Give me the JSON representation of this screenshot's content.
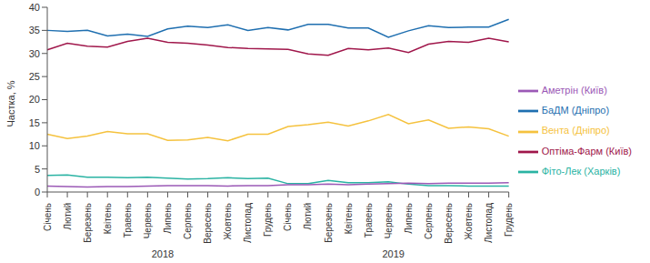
{
  "chart_data": {
    "type": "line",
    "y_label": "Частка, %",
    "categories": [
      "Січень",
      "Лютий",
      "Березень",
      "Квітень",
      "Травень",
      "Червень",
      "Липень",
      "Серпень",
      "Вересень",
      "Жовтень",
      "Листопад",
      "Грудень",
      "Січень",
      "Лютий",
      "Березень",
      "Квітень",
      "Травень",
      "Червень",
      "Липень",
      "Серпень",
      "Вересень",
      "Жовтень",
      "Листопад",
      "Грудень"
    ],
    "year_labels": [
      "2018",
      "2019"
    ],
    "series": [
      {
        "name": "БаДМ (Дніпро)",
        "color": "#1f6fb0",
        "values": [
          35,
          34.8,
          35,
          33.8,
          34.2,
          33.7,
          35.3,
          35.9,
          35.6,
          36.2,
          35,
          35.6,
          35.1,
          36.3,
          36.3,
          35.5,
          35.5,
          33.5,
          34.9,
          36,
          35.6,
          35.7,
          35.7,
          37.4
        ]
      },
      {
        "name": "Оптіма-Фарм (Київ)",
        "color": "#a0174b",
        "values": [
          30.8,
          32.2,
          31.6,
          31.4,
          32.6,
          33.3,
          32.4,
          32.2,
          31.8,
          31.3,
          31.1,
          31.0,
          30.9,
          29.9,
          29.6,
          31.1,
          30.8,
          31.2,
          30.2,
          32,
          32.6,
          32.4,
          33.3,
          32.5
        ]
      },
      {
        "name": "Вента (Дніпро)",
        "color": "#f5c23e",
        "values": [
          12.5,
          11.6,
          12.1,
          13.1,
          12.6,
          12.6,
          11.2,
          11.3,
          11.8,
          11.1,
          12.5,
          12.5,
          14.2,
          14.6,
          15.1,
          14.3,
          15.4,
          16.8,
          14.8,
          15.6,
          13.8,
          14.1,
          13.7,
          12.1
        ]
      },
      {
        "name": "Фіто-Лек (Харків)",
        "color": "#2ab3a3",
        "values": [
          3.6,
          3.7,
          3.2,
          3.2,
          3.1,
          3.2,
          3.0,
          2.8,
          2.9,
          3.1,
          2.9,
          3.0,
          1.8,
          1.8,
          2.5,
          2.0,
          2.0,
          2.2,
          1.7,
          1.4,
          1.4,
          1.3,
          1.3,
          1.3
        ]
      },
      {
        "name": "Аметрін (Київ)",
        "color": "#9b59b6",
        "values": [
          1.3,
          1.2,
          1.1,
          1.2,
          1.2,
          1.3,
          1.4,
          1.4,
          1.4,
          1.3,
          1.4,
          1.4,
          1.6,
          1.6,
          1.7,
          1.6,
          1.7,
          1.8,
          1.9,
          1.8,
          1.9,
          1.9,
          1.9,
          2.0
        ]
      }
    ],
    "ylim": [
      0,
      40
    ],
    "yticks": [
      0,
      5,
      10,
      15,
      20,
      25,
      30,
      35,
      40
    ],
    "grid": false,
    "legend": "right"
  }
}
